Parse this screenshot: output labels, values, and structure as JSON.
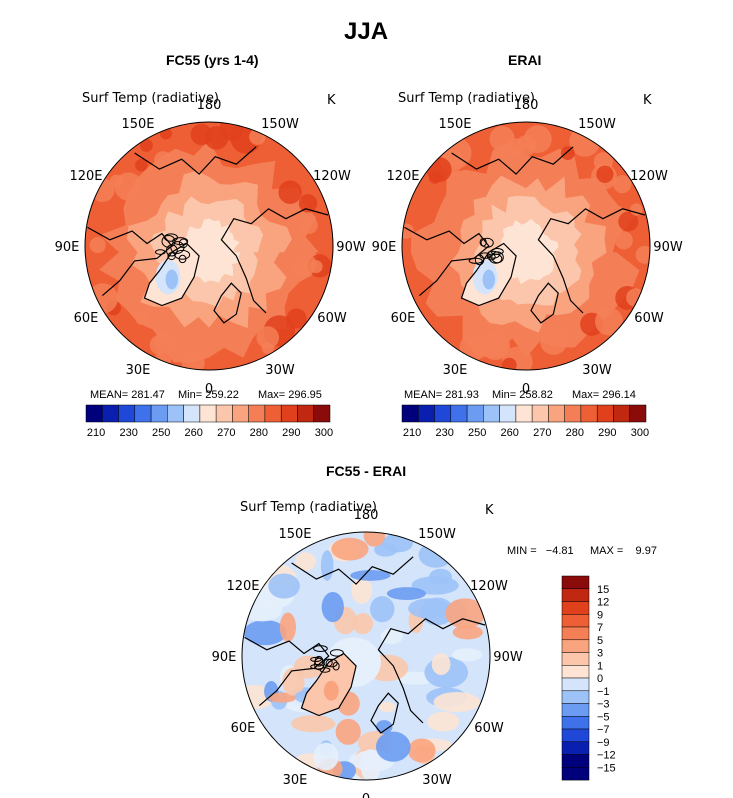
{
  "figure": {
    "title": "JJA"
  },
  "chart_data": [
    {
      "type": "heatmap",
      "title": "FC55 (yrs 1-4)",
      "variable": "Surf Temp (radiative)",
      "units": "K",
      "projection": "north polar stereographic",
      "lon_labels": [
        "180",
        "150E",
        "120E",
        "90E",
        "60E",
        "30E",
        "0",
        "30W",
        "60W",
        "90W",
        "120W",
        "150W"
      ],
      "stats": {
        "mean": "MEAN= 281.47",
        "min": "Min= 259.22",
        "max": "Max= 296.95"
      },
      "colorbar": {
        "levels": [
          210,
          230,
          250,
          260,
          270,
          280,
          290,
          300
        ],
        "colors": [
          "#00007d",
          "#0a1fb0",
          "#1f48d9",
          "#3f72ea",
          "#6c9cf2",
          "#9cc2f7",
          "#d4e4fb",
          "#fde4d4",
          "#fbc6ab",
          "#f9a47f",
          "#f47f56",
          "#ef5f35",
          "#e0411c",
          "#c02811",
          "#8b0a0a"
        ]
      }
    },
    {
      "type": "heatmap",
      "title": "ERAI",
      "variable": "Surf Temp (radiative)",
      "units": "K",
      "projection": "north polar stereographic",
      "lon_labels": [
        "180",
        "150E",
        "120E",
        "90E",
        "60E",
        "30E",
        "0",
        "30W",
        "60W",
        "90W",
        "120W",
        "150W"
      ],
      "stats": {
        "mean": "MEAN= 281.93",
        "min": "Min= 258.82",
        "max": "Max= 296.14"
      },
      "colorbar": {
        "levels": [
          210,
          230,
          250,
          260,
          270,
          280,
          290,
          300
        ],
        "colors": [
          "#00007d",
          "#0a1fb0",
          "#1f48d9",
          "#3f72ea",
          "#6c9cf2",
          "#9cc2f7",
          "#d4e4fb",
          "#fde4d4",
          "#fbc6ab",
          "#f9a47f",
          "#f47f56",
          "#ef5f35",
          "#e0411c",
          "#c02811",
          "#8b0a0a"
        ]
      }
    },
    {
      "type": "heatmap",
      "title": "FC55 - ERAI",
      "variable": "Surf Temp (radiative)",
      "units": "K",
      "projection": "north polar stereographic",
      "lon_labels": [
        "180",
        "150E",
        "120E",
        "90E",
        "60E",
        "30E",
        "0",
        "30W",
        "60W",
        "90W",
        "120W",
        "150W"
      ],
      "stats": {
        "min": "MIN =   −4.81",
        "max": "MAX =    9.97"
      },
      "colorbar": {
        "levels": [
          "15",
          "12",
          "9",
          "7",
          "5",
          "3",
          "1",
          "0",
          "−1",
          "−3",
          "−5",
          "−7",
          "−9",
          "−12",
          "−15"
        ],
        "colors": [
          "#8b0a0a",
          "#c02811",
          "#e0411c",
          "#ef5f35",
          "#f47f56",
          "#f9a47f",
          "#fbc6ab",
          "#fde4d4",
          "#d4e4fb",
          "#9cc2f7",
          "#6c9cf2",
          "#3f72ea",
          "#1f48d9",
          "#0a1fb0",
          "#00007d",
          "#00007d"
        ]
      }
    }
  ]
}
